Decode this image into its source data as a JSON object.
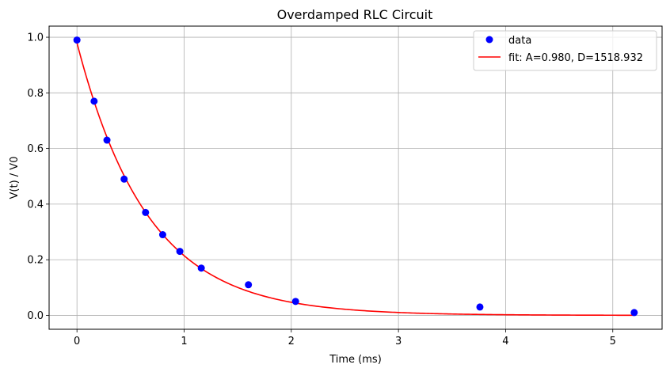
{
  "chart_data": {
    "type": "scatter",
    "title": "Overdamped RLC Circuit",
    "xlabel": "Time (ms)",
    "ylabel": "V(t) / V0",
    "xlim": [
      -0.26,
      5.46
    ],
    "ylim": [
      -0.05,
      1.04
    ],
    "xticks": [
      0,
      1,
      2,
      3,
      4,
      5
    ],
    "yticks": [
      0.0,
      0.2,
      0.4,
      0.6,
      0.8,
      1.0
    ],
    "xtick_labels": [
      "0",
      "1",
      "2",
      "3",
      "4",
      "5"
    ],
    "ytick_labels": [
      "0.0",
      "0.2",
      "0.4",
      "0.6",
      "0.8",
      "1.0"
    ],
    "grid": true,
    "legend_position": "top-right",
    "series": [
      {
        "name": "data",
        "kind": "points",
        "color": "#0000ff",
        "x": [
          0.0,
          0.16,
          0.28,
          0.44,
          0.64,
          0.8,
          0.96,
          1.16,
          1.6,
          2.04,
          3.76,
          5.2
        ],
        "y": [
          0.99,
          0.77,
          0.63,
          0.49,
          0.37,
          0.29,
          0.23,
          0.17,
          0.11,
          0.05,
          0.03,
          0.01
        ]
      },
      {
        "name": "fit: A=0.980, D=1518.932",
        "kind": "line",
        "color": "#ff0000",
        "A": 0.98,
        "D": 1518.932,
        "x_range": [
          0,
          5.2
        ]
      }
    ]
  }
}
